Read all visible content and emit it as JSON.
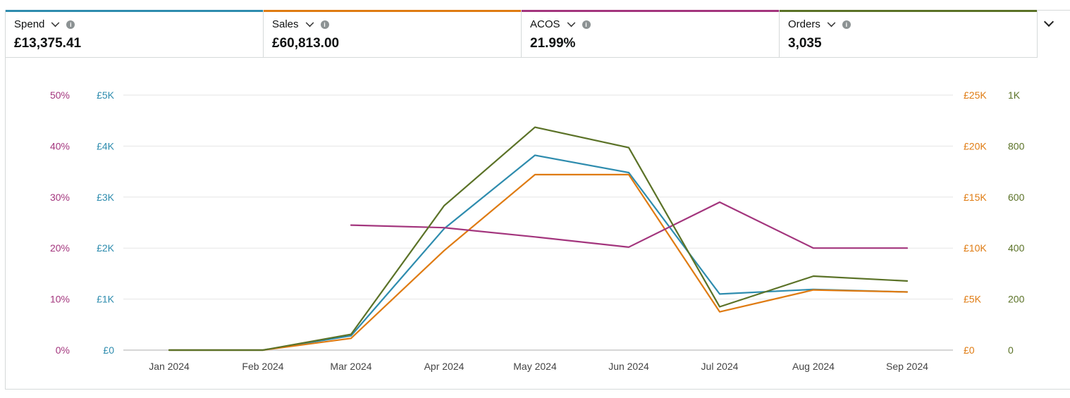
{
  "metrics": [
    {
      "label": "Spend",
      "value": "£13,375.41",
      "color": "#2e8cae"
    },
    {
      "label": "Sales",
      "value": "£60,813.00",
      "color": "#df7b12"
    },
    {
      "label": "ACOS",
      "value": "21.99%",
      "color": "#a3357d"
    },
    {
      "label": "Orders",
      "value": "3,035",
      "color": "#5b7227"
    }
  ],
  "icons": {
    "dropdown": "chevron-down-icon",
    "info": "info-icon",
    "expand": "chevron-down-icon"
  },
  "chart_data": {
    "type": "line",
    "x": [
      "Jan 2024",
      "Feb 2024",
      "Mar 2024",
      "Apr 2024",
      "May 2024",
      "Jun 2024",
      "Jul 2024",
      "Aug 2024",
      "Sep 2024"
    ],
    "grid": true,
    "axes": [
      {
        "id": "acos",
        "side": "left",
        "range": [
          0,
          50
        ],
        "ticks": [
          0,
          10,
          20,
          30,
          40,
          50
        ],
        "tick_labels": [
          "0%",
          "10%",
          "20%",
          "30%",
          "40%",
          "50%"
        ],
        "color": "#a3357d"
      },
      {
        "id": "spend",
        "side": "left",
        "range": [
          0,
          5000
        ],
        "ticks": [
          0,
          1000,
          2000,
          3000,
          4000,
          5000
        ],
        "tick_labels": [
          "£0",
          "£1K",
          "£2K",
          "£3K",
          "£4K",
          "£5K"
        ],
        "color": "#2e8cae"
      },
      {
        "id": "sales",
        "side": "right",
        "range": [
          0,
          25000
        ],
        "ticks": [
          0,
          5000,
          10000,
          15000,
          20000,
          25000
        ],
        "tick_labels": [
          "£0",
          "£5K",
          "£10K",
          "£15K",
          "£20K",
          "£25K"
        ],
        "color": "#df7b12"
      },
      {
        "id": "orders",
        "side": "right",
        "range": [
          0,
          1000
        ],
        "ticks": [
          0,
          200,
          400,
          600,
          800,
          1000
        ],
        "tick_labels": [
          "0",
          "200",
          "400",
          "600",
          "800",
          "1K"
        ],
        "color": "#5b7227"
      }
    ],
    "series": [
      {
        "name": "Spend",
        "axis": "spend",
        "color": "#2e8cae",
        "values": [
          0,
          0,
          280,
          2380,
          3820,
          3480,
          1100,
          1190,
          1140
        ]
      },
      {
        "name": "Sales",
        "axis": "sales",
        "color": "#df7b12",
        "values": [
          0,
          0,
          1150,
          9750,
          17200,
          17200,
          3750,
          5900,
          5700
        ]
      },
      {
        "name": "ACOS",
        "axis": "acos",
        "color": "#a3357d",
        "values": [
          null,
          null,
          24.5,
          24.0,
          22.2,
          20.2,
          29.0,
          20.0,
          20.0
        ]
      },
      {
        "name": "Orders",
        "axis": "orders",
        "color": "#5b7227",
        "values": [
          0,
          0,
          62,
          566,
          874,
          794,
          170,
          290,
          271
        ]
      }
    ]
  }
}
